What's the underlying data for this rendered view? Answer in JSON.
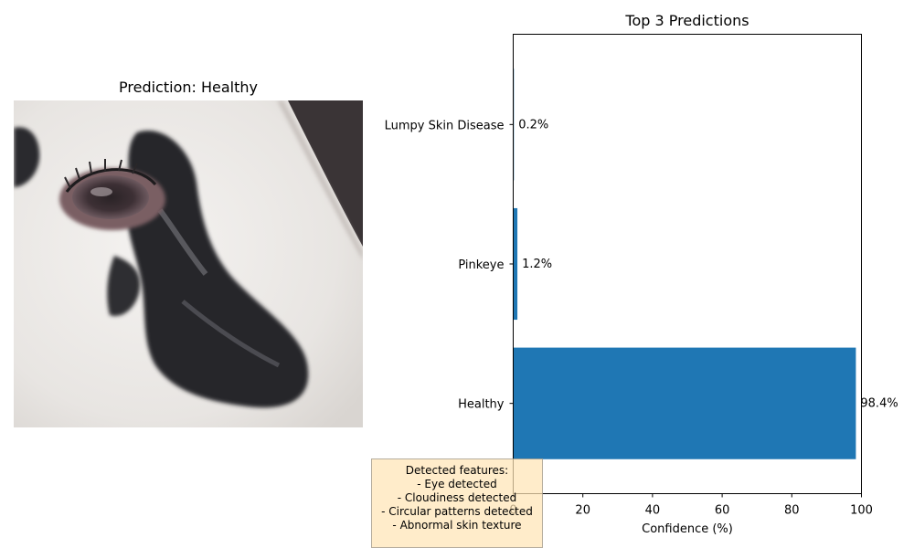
{
  "left_panel": {
    "title": "Prediction: Healthy",
    "image_alt": "cow eye close-up"
  },
  "features_box": {
    "header": "Detected features:",
    "items": [
      "- Eye detected",
      "- Cloudiness detected",
      "- Circular patterns detected",
      "- Abnormal skin texture"
    ],
    "background": "#ffe4b5"
  },
  "chart_data": {
    "type": "bar",
    "orientation": "horizontal",
    "title": "Top 3 Predictions",
    "xlabel": "Confidence (%)",
    "ylabel": "",
    "categories": [
      "Healthy",
      "Pinkeye",
      "Lumpy Skin Disease"
    ],
    "values": [
      98.4,
      1.2,
      0.2
    ],
    "value_labels": [
      "98.4%",
      "1.2%",
      "0.2%"
    ],
    "xlim": [
      0,
      100
    ],
    "xticks": [
      0,
      20,
      40,
      60,
      80,
      100
    ],
    "bar_color": "#1f77b4",
    "grid": false
  }
}
